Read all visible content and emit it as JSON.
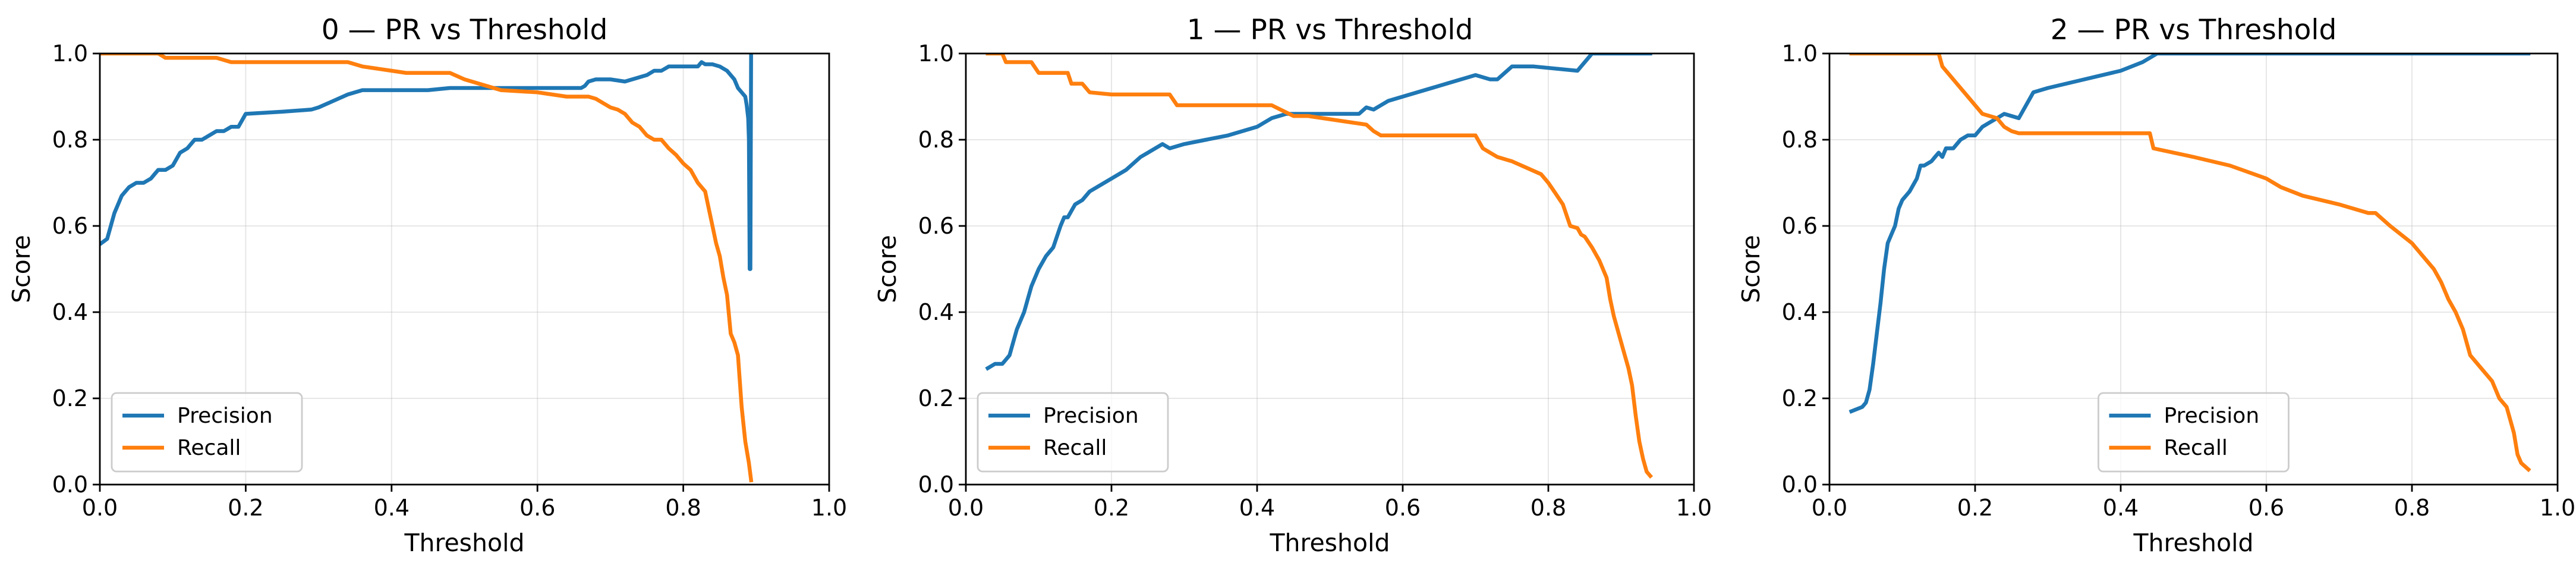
{
  "colors": {
    "precision": "#1f77b4",
    "recall": "#ff7f0e"
  },
  "chart_data": [
    {
      "type": "line",
      "title": "0 — PR vs Threshold",
      "xlabel": "Threshold",
      "ylabel": "Score",
      "xlim": [
        0,
        1
      ],
      "ylim": [
        0,
        1
      ],
      "grid": true,
      "legend_position": "lower-left",
      "xticks": [
        "0.0",
        "0.2",
        "0.4",
        "0.6",
        "0.8",
        "1.0"
      ],
      "yticks": [
        "0.0",
        "0.2",
        "0.4",
        "0.6",
        "0.8",
        "1.0"
      ],
      "series": [
        {
          "name": "Precision",
          "x": [
            0.002,
            0.01,
            0.02,
            0.03,
            0.04,
            0.05,
            0.06,
            0.07,
            0.075,
            0.08,
            0.09,
            0.1,
            0.11,
            0.12,
            0.13,
            0.14,
            0.15,
            0.16,
            0.17,
            0.18,
            0.19,
            0.2,
            0.25,
            0.29,
            0.3,
            0.32,
            0.34,
            0.36,
            0.4,
            0.45,
            0.48,
            0.5,
            0.55,
            0.6,
            0.66,
            0.665,
            0.67,
            0.68,
            0.7,
            0.72,
            0.73,
            0.74,
            0.75,
            0.76,
            0.77,
            0.78,
            0.8,
            0.81,
            0.82,
            0.825,
            0.83,
            0.84,
            0.85,
            0.86,
            0.87,
            0.875,
            0.88,
            0.885,
            0.887,
            0.889,
            0.89,
            0.891,
            0.892,
            0.893
          ],
          "y": [
            0.56,
            0.57,
            0.63,
            0.67,
            0.69,
            0.7,
            0.7,
            0.71,
            0.72,
            0.73,
            0.73,
            0.74,
            0.77,
            0.78,
            0.8,
            0.8,
            0.81,
            0.82,
            0.82,
            0.83,
            0.83,
            0.86,
            0.865,
            0.87,
            0.875,
            0.89,
            0.905,
            0.915,
            0.915,
            0.915,
            0.92,
            0.92,
            0.92,
            0.92,
            0.92,
            0.925,
            0.935,
            0.94,
            0.94,
            0.935,
            0.94,
            0.945,
            0.95,
            0.96,
            0.96,
            0.97,
            0.97,
            0.97,
            0.97,
            0.98,
            0.975,
            0.975,
            0.97,
            0.96,
            0.94,
            0.92,
            0.91,
            0.9,
            0.88,
            0.85,
            0.8,
            0.5,
            0.5,
            1.0
          ]
        },
        {
          "name": "Recall",
          "x": [
            0.0,
            0.08,
            0.085,
            0.09,
            0.1,
            0.12,
            0.14,
            0.16,
            0.17,
            0.18,
            0.2,
            0.25,
            0.3,
            0.34,
            0.36,
            0.38,
            0.4,
            0.42,
            0.44,
            0.48,
            0.5,
            0.52,
            0.55,
            0.6,
            0.62,
            0.64,
            0.65,
            0.67,
            0.68,
            0.7,
            0.71,
            0.72,
            0.73,
            0.74,
            0.75,
            0.76,
            0.77,
            0.78,
            0.79,
            0.8,
            0.81,
            0.82,
            0.83,
            0.835,
            0.84,
            0.845,
            0.85,
            0.855,
            0.86,
            0.865,
            0.87,
            0.875,
            0.88,
            0.885,
            0.89,
            0.893
          ],
          "y": [
            1.0,
            1.0,
            0.995,
            0.99,
            0.99,
            0.99,
            0.99,
            0.99,
            0.985,
            0.98,
            0.98,
            0.98,
            0.98,
            0.98,
            0.97,
            0.965,
            0.96,
            0.955,
            0.955,
            0.955,
            0.94,
            0.93,
            0.915,
            0.91,
            0.905,
            0.9,
            0.9,
            0.9,
            0.895,
            0.875,
            0.87,
            0.86,
            0.84,
            0.83,
            0.81,
            0.8,
            0.8,
            0.78,
            0.765,
            0.745,
            0.73,
            0.7,
            0.68,
            0.64,
            0.6,
            0.56,
            0.53,
            0.48,
            0.44,
            0.35,
            0.33,
            0.3,
            0.18,
            0.1,
            0.05,
            0.01
          ]
        }
      ]
    },
    {
      "type": "line",
      "title": "1 — PR vs Threshold",
      "xlabel": "Threshold",
      "ylabel": "Score",
      "xlim": [
        0,
        1
      ],
      "ylim": [
        0,
        1
      ],
      "grid": true,
      "legend_position": "lower-left",
      "xticks": [
        "0.0",
        "0.2",
        "0.4",
        "0.6",
        "0.8",
        "1.0"
      ],
      "yticks": [
        "0.0",
        "0.2",
        "0.4",
        "0.6",
        "0.8",
        "1.0"
      ],
      "series": [
        {
          "name": "Precision",
          "x": [
            0.03,
            0.04,
            0.05,
            0.055,
            0.06,
            0.065,
            0.07,
            0.08,
            0.085,
            0.09,
            0.1,
            0.11,
            0.115,
            0.12,
            0.13,
            0.135,
            0.14,
            0.15,
            0.16,
            0.17,
            0.18,
            0.2,
            0.22,
            0.24,
            0.25,
            0.27,
            0.28,
            0.3,
            0.33,
            0.36,
            0.38,
            0.4,
            0.41,
            0.42,
            0.44,
            0.46,
            0.48,
            0.5,
            0.52,
            0.54,
            0.55,
            0.56,
            0.57,
            0.58,
            0.62,
            0.66,
            0.7,
            0.72,
            0.73,
            0.75,
            0.78,
            0.84,
            0.85,
            0.86,
            0.9,
            0.94
          ],
          "y": [
            0.27,
            0.28,
            0.28,
            0.29,
            0.3,
            0.33,
            0.36,
            0.4,
            0.43,
            0.46,
            0.5,
            0.53,
            0.54,
            0.55,
            0.6,
            0.62,
            0.62,
            0.65,
            0.66,
            0.68,
            0.69,
            0.71,
            0.73,
            0.76,
            0.77,
            0.79,
            0.78,
            0.79,
            0.8,
            0.81,
            0.82,
            0.83,
            0.84,
            0.85,
            0.86,
            0.86,
            0.86,
            0.86,
            0.86,
            0.86,
            0.875,
            0.87,
            0.88,
            0.89,
            0.91,
            0.93,
            0.95,
            0.94,
            0.94,
            0.97,
            0.97,
            0.96,
            0.98,
            1.0,
            1.0,
            1.0
          ]
        },
        {
          "name": "Recall",
          "x": [
            0.03,
            0.05,
            0.055,
            0.09,
            0.1,
            0.14,
            0.145,
            0.16,
            0.17,
            0.2,
            0.28,
            0.29,
            0.35,
            0.42,
            0.45,
            0.47,
            0.53,
            0.55,
            0.56,
            0.57,
            0.6,
            0.65,
            0.68,
            0.7,
            0.71,
            0.72,
            0.73,
            0.75,
            0.77,
            0.79,
            0.8,
            0.81,
            0.82,
            0.83,
            0.84,
            0.845,
            0.85,
            0.86,
            0.87,
            0.88,
            0.885,
            0.89,
            0.9,
            0.905,
            0.91,
            0.915,
            0.92,
            0.925,
            0.93,
            0.935,
            0.94
          ],
          "y": [
            1.0,
            1.0,
            0.98,
            0.98,
            0.955,
            0.955,
            0.93,
            0.93,
            0.91,
            0.905,
            0.905,
            0.88,
            0.88,
            0.88,
            0.855,
            0.855,
            0.84,
            0.835,
            0.82,
            0.81,
            0.81,
            0.81,
            0.81,
            0.81,
            0.78,
            0.77,
            0.76,
            0.75,
            0.735,
            0.72,
            0.7,
            0.675,
            0.65,
            0.6,
            0.595,
            0.58,
            0.575,
            0.55,
            0.52,
            0.48,
            0.43,
            0.39,
            0.33,
            0.3,
            0.27,
            0.23,
            0.16,
            0.1,
            0.06,
            0.03,
            0.02
          ]
        }
      ]
    },
    {
      "type": "line",
      "title": "2 — PR vs Threshold",
      "xlabel": "Threshold",
      "ylabel": "Score",
      "xlim": [
        0,
        1
      ],
      "ylim": [
        0,
        1
      ],
      "grid": true,
      "legend_position": "lower-center",
      "xticks": [
        "0.0",
        "0.2",
        "0.4",
        "0.6",
        "0.8",
        "1.0"
      ],
      "yticks": [
        "0.0",
        "0.2",
        "0.4",
        "0.6",
        "0.8",
        "1.0"
      ],
      "series": [
        {
          "name": "Precision",
          "x": [
            0.03,
            0.045,
            0.05,
            0.055,
            0.06,
            0.065,
            0.07,
            0.075,
            0.08,
            0.085,
            0.09,
            0.095,
            0.1,
            0.11,
            0.12,
            0.125,
            0.13,
            0.14,
            0.145,
            0.15,
            0.155,
            0.16,
            0.17,
            0.18,
            0.19,
            0.2,
            0.21,
            0.22,
            0.23,
            0.24,
            0.26,
            0.28,
            0.3,
            0.35,
            0.4,
            0.43,
            0.45,
            0.5,
            0.6,
            0.7,
            0.8,
            0.9,
            0.96
          ],
          "y": [
            0.17,
            0.18,
            0.19,
            0.22,
            0.28,
            0.35,
            0.42,
            0.5,
            0.56,
            0.58,
            0.6,
            0.64,
            0.66,
            0.68,
            0.71,
            0.74,
            0.74,
            0.75,
            0.76,
            0.77,
            0.76,
            0.78,
            0.78,
            0.8,
            0.81,
            0.81,
            0.83,
            0.84,
            0.85,
            0.86,
            0.85,
            0.91,
            0.92,
            0.94,
            0.96,
            0.98,
            1.0,
            1.0,
            1.0,
            1.0,
            1.0,
            1.0,
            1.0
          ]
        },
        {
          "name": "Recall",
          "x": [
            0.03,
            0.14,
            0.15,
            0.155,
            0.16,
            0.175,
            0.18,
            0.19,
            0.2,
            0.21,
            0.23,
            0.24,
            0.25,
            0.26,
            0.3,
            0.35,
            0.4,
            0.44,
            0.445,
            0.5,
            0.55,
            0.6,
            0.62,
            0.65,
            0.7,
            0.74,
            0.75,
            0.77,
            0.8,
            0.82,
            0.83,
            0.84,
            0.85,
            0.86,
            0.87,
            0.88,
            0.9,
            0.91,
            0.92,
            0.93,
            0.94,
            0.945,
            0.95,
            0.96
          ],
          "y": [
            1.0,
            1.0,
            1.0,
            0.97,
            0.96,
            0.93,
            0.92,
            0.9,
            0.88,
            0.86,
            0.85,
            0.83,
            0.82,
            0.815,
            0.815,
            0.815,
            0.815,
            0.815,
            0.78,
            0.76,
            0.74,
            0.71,
            0.69,
            0.67,
            0.65,
            0.63,
            0.63,
            0.6,
            0.56,
            0.52,
            0.5,
            0.47,
            0.43,
            0.4,
            0.36,
            0.3,
            0.26,
            0.24,
            0.2,
            0.18,
            0.12,
            0.07,
            0.05,
            0.035
          ]
        }
      ]
    }
  ]
}
